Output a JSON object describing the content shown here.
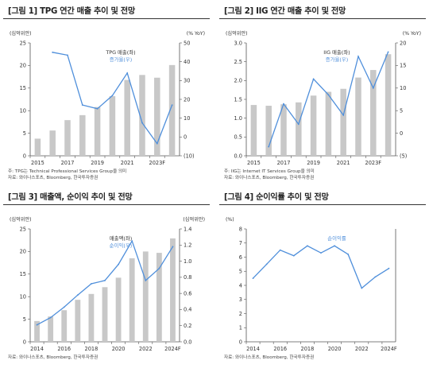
{
  "charts": [
    {
      "title": "[그림 1] TPG 연간 매출 추이 및 전망",
      "notes": [
        "주: TPG는 Technical Professional Services Group을 의미",
        "자료: 와이나스포츠, Bloomberg, 한국투자증권"
      ]
    },
    {
      "title": "[그림 2] IIG 연간 매출 추이 및 전망",
      "notes": [
        "주: IIG는 Internet IT Services Group을 의미",
        "자료: 와이나스포츠, Bloomberg, 한국투자증권"
      ]
    },
    {
      "title": "[그림 3] 매출액, 순이익 추이 및 전망",
      "notes": [
        "자료: 와이나스포츠, Bloomberg, 한국투자증권"
      ]
    },
    {
      "title": "[그림 4] 순이익률 추이 및 전망",
      "notes": [
        "자료: 와이나스포츠, Bloomberg, 한국투자증권"
      ]
    }
  ],
  "colors": {
    "bar": "#c8c8c8",
    "line": "#4f8fdb",
    "axis": "#555555"
  },
  "chart_data": [
    {
      "type": "bar",
      "left_unit": "(십억위안)",
      "right_unit": "(% YoY)",
      "x": [
        "2015",
        "2016",
        "2017",
        "2018",
        "2019",
        "2020",
        "2021",
        "2022",
        "2023F",
        "2024F"
      ],
      "x_tick_labels": [
        "2015",
        "",
        "2017",
        "",
        "2019",
        "",
        "2021",
        "",
        "2023F",
        ""
      ],
      "ylim": [
        0,
        25
      ],
      "y_ticks": [
        "0",
        "5",
        "10",
        "15",
        "20",
        "25"
      ],
      "y2lim": [
        -10,
        50
      ],
      "y2_ticks": [
        "(10)",
        "0",
        "10",
        "20",
        "30",
        "40",
        "50"
      ],
      "series": [
        {
          "name": "TPG 매출(좌)",
          "type": "bar",
          "axis": "left",
          "values": [
            3.8,
            5.6,
            7.9,
            9.0,
            10.8,
            13.2,
            16.8,
            17.9,
            17.3,
            20.1
          ]
        },
        {
          "name": "증가율(우)",
          "type": "line",
          "axis": "right",
          "values": [
            null,
            45.0,
            43.5,
            17.0,
            15.0,
            22.0,
            34.0,
            7.5,
            -3.5,
            17.0
          ]
        }
      ]
    },
    {
      "type": "bar",
      "left_unit": "(십억위안)",
      "right_unit": "(% YoY)",
      "x": [
        "2015",
        "2016",
        "2017",
        "2018",
        "2019",
        "2020",
        "2021",
        "2022",
        "2023F",
        "2024F"
      ],
      "x_tick_labels": [
        "2015",
        "",
        "2017",
        "",
        "2019",
        "",
        "2021",
        "",
        "2023F",
        ""
      ],
      "ylim": [
        0,
        3.0
      ],
      "y_ticks": [
        "0.0",
        "0.5",
        "1.0",
        "1.5",
        "2.0",
        "2.5",
        "3.0"
      ],
      "y2lim": [
        -5,
        20
      ],
      "y2_ticks": [
        "(5)",
        "0",
        "5",
        "10",
        "15",
        "20"
      ],
      "series": [
        {
          "name": "IIG 매출(좌)",
          "type": "bar",
          "axis": "left",
          "values": [
            1.35,
            1.33,
            1.37,
            1.42,
            1.6,
            1.7,
            1.78,
            2.08,
            2.28,
            2.7
          ]
        },
        {
          "name": "증가율(우)",
          "type": "line",
          "axis": "right",
          "values": [
            null,
            -3.0,
            6.5,
            2.0,
            12.0,
            8.5,
            4.0,
            17.0,
            10.0,
            18.0
          ]
        }
      ]
    },
    {
      "type": "bar",
      "left_unit": "(십억위안)",
      "right_unit": "(십억위안)",
      "x": [
        "2014",
        "2015",
        "2016",
        "2017",
        "2018",
        "2019",
        "2020",
        "2021",
        "2022",
        "2023F",
        "2024F"
      ],
      "x_tick_labels": [
        "2014",
        "",
        "2016",
        "",
        "2018",
        "",
        "2020",
        "",
        "2022",
        "",
        "2024F"
      ],
      "ylim": [
        0,
        25
      ],
      "y_ticks": [
        "0",
        "5",
        "10",
        "15",
        "20",
        "25"
      ],
      "y2lim": [
        0,
        1.4
      ],
      "y2_ticks": [
        "0.0",
        "0.2",
        "0.4",
        "0.6",
        "0.8",
        "1.0",
        "1.2",
        "1.4"
      ],
      "series": [
        {
          "name": "매출액(좌)",
          "type": "bar",
          "axis": "left",
          "values": [
            4.6,
            5.6,
            7.0,
            9.3,
            10.6,
            12.1,
            14.2,
            18.5,
            20.0,
            19.7,
            22.9
          ]
        },
        {
          "name": "순이익(우)",
          "type": "line",
          "axis": "right",
          "values": [
            0.21,
            0.3,
            0.43,
            0.58,
            0.72,
            0.76,
            0.96,
            1.25,
            0.76,
            0.91,
            1.18
          ]
        }
      ]
    },
    {
      "type": "line",
      "left_unit": "(%)",
      "x": [
        "2014",
        "2015",
        "2016",
        "2017",
        "2018",
        "2019",
        "2020",
        "2021",
        "2022",
        "2023F",
        "2024F"
      ],
      "x_tick_labels": [
        "2014",
        "",
        "2016",
        "",
        "2018",
        "",
        "2020",
        "",
        "2022",
        "",
        "2024F"
      ],
      "ylim": [
        0,
        8
      ],
      "y_ticks": [
        "0",
        "1",
        "2",
        "3",
        "4",
        "5",
        "6",
        "7",
        "8"
      ],
      "series": [
        {
          "name": "순이익률",
          "type": "line",
          "axis": "left",
          "values": [
            4.5,
            5.5,
            6.5,
            6.1,
            6.8,
            6.3,
            6.8,
            6.2,
            3.8,
            4.6,
            5.2
          ]
        }
      ]
    }
  ]
}
